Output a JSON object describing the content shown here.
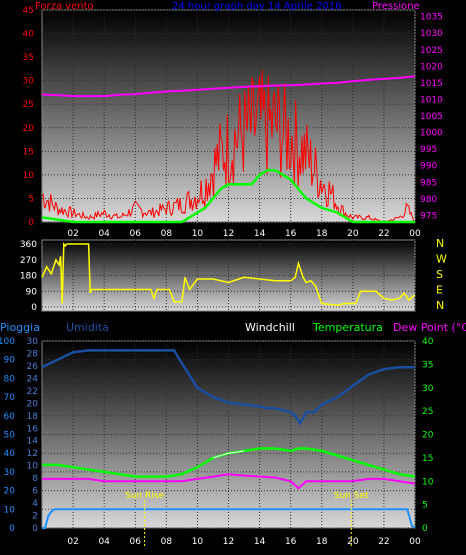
{
  "panel1": {
    "title": "24 hour graph day  14 Aprile 2016",
    "left_label": "Forza vento",
    "right_label": "Pressione",
    "colors": {
      "wind": "#ff0000",
      "gust_avg": "#00ff00",
      "pressure": "#ff00ff",
      "left_axis": "#ff0000",
      "right_axis": "#ff00ff",
      "title": "#0000ff"
    }
  },
  "panel2": {
    "compass_labels": [
      "N",
      "W",
      "S",
      "E",
      "N"
    ],
    "color": "#ffff00"
  },
  "panel3": {
    "labels": {
      "rain": "Pioggia",
      "humidity": "Umidita",
      "windchill": "Windchill",
      "temperature": "Temperatura",
      "dewpoint": "Dew Point (°C)"
    },
    "sun_rise": "Sun Rise",
    "sun_set": "Sun Set",
    "colors": {
      "rain": "#1e90ff",
      "humidity": "#1a4fa0",
      "temperature": "#00ff00",
      "dewpoint": "#ff00ff",
      "windchill": "#ffffff"
    }
  },
  "chart_data": [
    {
      "type": "line",
      "title": "24 hour graph day  14 Aprile 2016",
      "x_ticks": [
        "02",
        "04",
        "06",
        "08",
        "10",
        "12",
        "14",
        "16",
        "18",
        "20",
        "22",
        "00"
      ],
      "y_left_ticks": [
        "0",
        "5",
        "10",
        "15",
        "20",
        "25",
        "30",
        "35",
        "40",
        "45"
      ],
      "y_right_ticks": [
        "975",
        "980",
        "985",
        "990",
        "995",
        "1000",
        "1005",
        "1010",
        "1015",
        "1020",
        "1025",
        "1030",
        "1035"
      ],
      "ylim_left": [
        0,
        45
      ],
      "ylim_right": [
        973,
        1037
      ],
      "series": [
        {
          "name": "Forza vento",
          "axis": "left",
          "x": [
            0,
            1,
            2,
            3,
            4,
            5,
            6,
            7,
            8,
            9,
            10,
            10.5,
            11,
            11.5,
            12,
            12.5,
            13,
            13.5,
            14,
            14.5,
            15,
            15.5,
            16,
            16.5,
            17,
            17.5,
            18,
            18.5,
            19,
            19.5,
            20,
            21,
            22,
            23,
            23.5,
            24
          ],
          "values": [
            6,
            3,
            2,
            1,
            2,
            1,
            3,
            2,
            3,
            4,
            6,
            8,
            12,
            15,
            17,
            19,
            20,
            21,
            22,
            21,
            22,
            20,
            19,
            17,
            15,
            12,
            9,
            7,
            4,
            2,
            1,
            1,
            0,
            1,
            3,
            0
          ]
        },
        {
          "axis": "left",
          "x": [
            0,
            1,
            2,
            3,
            4,
            5,
            6,
            7,
            8,
            9,
            9.5,
            10,
            10.5,
            11,
            11.5,
            12,
            12.5,
            13,
            13.5,
            14,
            14.5,
            15,
            15.5,
            16,
            16.5,
            17,
            17.5,
            18,
            18.5,
            19,
            19.5,
            20,
            21,
            22,
            23,
            24
          ],
          "values": [
            1,
            0.5,
            0,
            0,
            0,
            0,
            0,
            0,
            0,
            0,
            1,
            2,
            3,
            5,
            7,
            8,
            8,
            8,
            8,
            10,
            11,
            11,
            10,
            9,
            7,
            5,
            4,
            3,
            2.5,
            2,
            1,
            0,
            0,
            0,
            0,
            0
          ]
        },
        {
          "name": "Pressione",
          "axis": "right",
          "x": [
            0,
            1,
            2,
            3,
            4,
            5,
            6,
            7,
            8,
            9,
            10,
            11,
            12,
            13,
            14,
            15,
            16,
            17,
            18,
            19,
            20,
            21,
            22,
            23,
            24
          ],
          "values": [
            1011.5,
            1011.3,
            1011.0,
            1011.0,
            1011.0,
            1011.4,
            1011.6,
            1012.0,
            1012.4,
            1012.6,
            1012.9,
            1013.2,
            1013.5,
            1013.8,
            1014.0,
            1014.2,
            1014.3,
            1014.5,
            1014.8,
            1015.0,
            1015.5,
            1015.9,
            1016.2,
            1016.5,
            1017.0
          ]
        }
      ]
    },
    {
      "type": "line",
      "y_ticks": [
        "0",
        "90",
        "180",
        "270",
        "360"
      ],
      "ylim": [
        0,
        360
      ],
      "series": [
        {
          "x": [
            0,
            0.3,
            0.6,
            0.9,
            1.1,
            1.2,
            1.3,
            1.4,
            1.5,
            1.6,
            1.7,
            1.8,
            2.2,
            2.7,
            3.0,
            3.1,
            3.2,
            4,
            5,
            6,
            7,
            7.2,
            7.4,
            8.2,
            8.5,
            8.8,
            9.0,
            9.2,
            9.5,
            10,
            11,
            12,
            13,
            14,
            15,
            16,
            16.3,
            16.5,
            16.8,
            17,
            17.3,
            17.6,
            18,
            19,
            19.5,
            20.2,
            20.5,
            21,
            21.5,
            22,
            22.5,
            23,
            23.3,
            23.6,
            24
          ],
          "values": [
            170,
            230,
            190,
            270,
            240,
            290,
            20,
            360,
            350,
            360,
            360,
            360,
            360,
            360,
            360,
            80,
            100,
            100,
            100,
            100,
            100,
            50,
            100,
            100,
            30,
            30,
            30,
            170,
            100,
            160,
            160,
            140,
            170,
            160,
            150,
            150,
            170,
            250,
            170,
            140,
            150,
            120,
            20,
            10,
            20,
            20,
            90,
            90,
            90,
            50,
            40,
            50,
            80,
            40,
            70
          ]
        }
      ]
    },
    {
      "type": "line",
      "x_ticks": [
        "02",
        "04",
        "06",
        "08",
        "10",
        "12",
        "14",
        "16",
        "18",
        "20",
        "22",
        "00"
      ],
      "y_left_ticks": [
        "0",
        "10",
        "20",
        "30",
        "40",
        "50",
        "60",
        "70",
        "80",
        "90",
        "100"
      ],
      "y_mid_ticks": [
        "0",
        "2",
        "4",
        "6",
        "8",
        "10",
        "12",
        "14",
        "16",
        "18",
        "20",
        "22",
        "24",
        "26",
        "28",
        "30"
      ],
      "y_right_ticks": [
        "0",
        "5",
        "10",
        "15",
        "20",
        "25",
        "30",
        "35",
        "40"
      ],
      "ylim_left": [
        0,
        100
      ],
      "ylim_right": [
        0,
        40
      ],
      "series": [
        {
          "name": "Umidita",
          "axis": "left",
          "x": [
            0,
            1,
            2,
            3,
            4,
            5,
            6,
            7,
            8,
            8.5,
            9,
            10,
            11,
            12,
            13,
            14,
            14.5,
            15,
            15.5,
            16,
            16.3,
            16.6,
            17,
            17.5,
            18,
            19,
            20,
            21,
            22,
            23,
            24
          ],
          "values": [
            86,
            90,
            94,
            95,
            95,
            95,
            95,
            95,
            95,
            95,
            88,
            75,
            70,
            67,
            66,
            65,
            64,
            64,
            63,
            62,
            60,
            56,
            62,
            62,
            66,
            70,
            76,
            82,
            85,
            86,
            86
          ]
        },
        {
          "name": "Temperatura",
          "axis": "right",
          "x": [
            0,
            1,
            2,
            3,
            4,
            5,
            6,
            7,
            8,
            9,
            10,
            11,
            12,
            13,
            14,
            15,
            16,
            16.5,
            17,
            18,
            19,
            20,
            21,
            22,
            23,
            24
          ],
          "values": [
            13.5,
            13.5,
            13,
            12.5,
            12,
            11.5,
            11,
            11,
            11,
            11.5,
            13,
            15,
            16,
            16.5,
            17,
            17,
            16.5,
            17,
            17,
            16.5,
            15.5,
            14.5,
            13.5,
            12.5,
            11.5,
            11
          ]
        },
        {
          "name": "Windchill",
          "axis": "right",
          "x": [
            11,
            11.5,
            12,
            12.5,
            13
          ],
          "values": [
            15,
            15.5,
            16,
            16.2,
            16.5
          ]
        },
        {
          "name": "Dew Point (°C)",
          "axis": "right",
          "x": [
            0,
            1,
            2,
            3,
            4,
            5,
            6,
            7,
            8,
            9,
            10,
            11,
            12,
            13,
            14,
            15,
            16,
            16.5,
            17,
            18,
            19,
            20,
            21,
            22,
            23,
            24
          ],
          "values": [
            10.5,
            10.5,
            10.5,
            10.5,
            10,
            10,
            10,
            10,
            10,
            10,
            10.5,
            11,
            11.5,
            11.2,
            11,
            10.8,
            10,
            8.5,
            10,
            10,
            10,
            10,
            10.5,
            10.5,
            10,
            9.5
          ]
        },
        {
          "name": "Pioggia",
          "axis": "right",
          "x": [
            0,
            0.2,
            0.4,
            0.6,
            0.8,
            1.0,
            1.5,
            4,
            8,
            12,
            16,
            20,
            23.5,
            23.8,
            24
          ],
          "values": [
            0,
            0,
            2.5,
            3.5,
            4,
            4,
            4,
            4,
            4,
            4,
            4,
            4,
            4,
            0.5,
            0
          ]
        }
      ],
      "annotations": [
        {
          "label": "Sun Rise",
          "x": 6.6
        },
        {
          "label": "Sun Set",
          "x": 19.9
        }
      ]
    }
  ]
}
